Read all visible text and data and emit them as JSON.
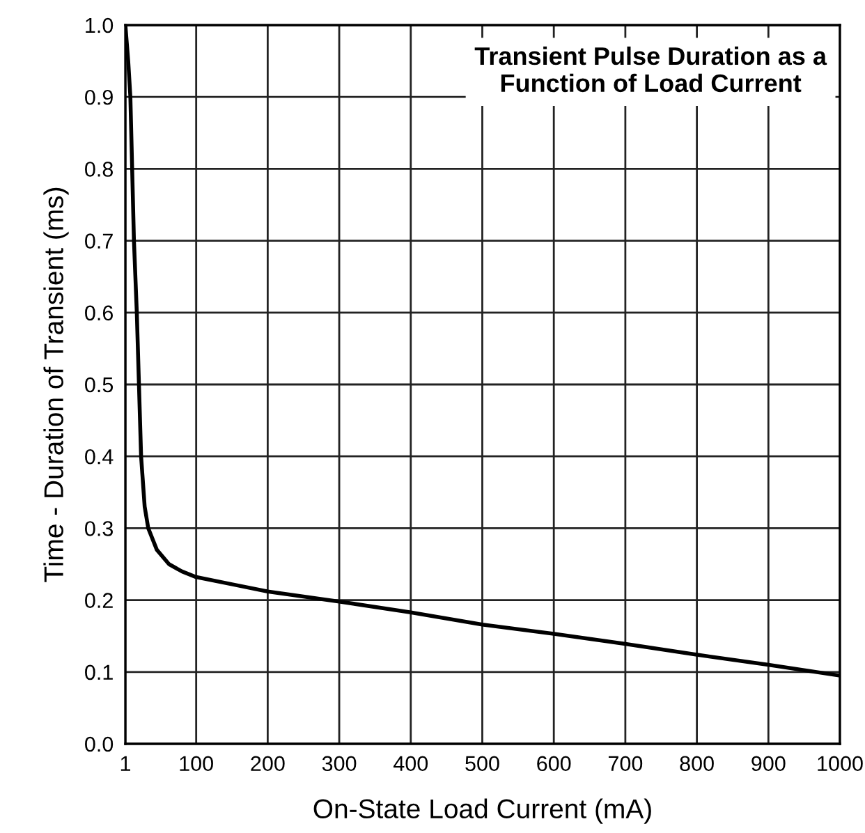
{
  "chart_data": {
    "type": "line",
    "title": "Transient Pulse Duration as a\nFunction of Load Current",
    "xlabel": "On-State Load Current (mA)",
    "ylabel": "Time - Duration of Transient (ms)",
    "x": [
      1,
      5,
      8,
      13,
      17,
      20,
      23,
      28,
      33,
      45,
      62,
      80,
      100,
      150,
      200,
      300,
      400,
      500,
      600,
      700,
      800,
      900,
      1000
    ],
    "series": [
      {
        "color": "#000000",
        "values": [
          1.0,
          0.95,
          0.9,
          0.7,
          0.6,
          0.5,
          0.4,
          0.33,
          0.3,
          0.27,
          0.25,
          0.24,
          0.232,
          0.222,
          0.212,
          0.198,
          0.183,
          0.166,
          0.153,
          0.139,
          0.124,
          0.11,
          0.095
        ]
      }
    ],
    "xlim": [
      1,
      1000
    ],
    "ylim": [
      0,
      1.0
    ],
    "xticks": [
      1,
      100,
      200,
      300,
      400,
      500,
      600,
      700,
      800,
      900,
      1000
    ],
    "yticks": [
      {
        "value": 0,
        "label": "0.0"
      },
      {
        "value": 0.1,
        "label": "0.1"
      },
      {
        "value": 0.2,
        "label": "0.2"
      },
      {
        "value": 0.3,
        "label": "0.3"
      },
      {
        "value": 0.4,
        "label": "0.4"
      },
      {
        "value": 0.5,
        "label": "0.5"
      },
      {
        "value": 0.6,
        "label": "0.6"
      },
      {
        "value": 0.7,
        "label": "0.7"
      },
      {
        "value": 0.8,
        "label": "0.8"
      },
      {
        "value": 0.9,
        "label": "0.9"
      },
      {
        "value": 1.0,
        "label": "1.0"
      }
    ],
    "grid": true,
    "legend": false
  }
}
